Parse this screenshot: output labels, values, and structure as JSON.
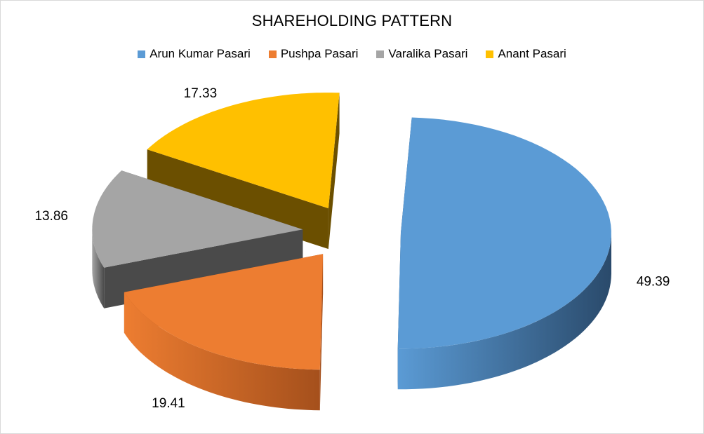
{
  "chart_data": {
    "type": "pie",
    "title": "SHAREHOLDING PATTERN",
    "legend_position": "top",
    "style": "3d-exploded",
    "slices": [
      {
        "name": "Arun Kumar Pasari",
        "value": 49.39,
        "label": "49.39",
        "color": "#5b9bd5",
        "side_color": "#2a4a6b"
      },
      {
        "name": "Pushpa Pasari",
        "value": 19.41,
        "label": "19.41",
        "color": "#ed7d31",
        "side_color": "#a5501c"
      },
      {
        "name": "Varalika Pasari",
        "value": 13.86,
        "label": "13.86",
        "color": "#a5a5a5",
        "side_color": "#4a4a4a"
      },
      {
        "name": "Anant Pasari",
        "value": 17.33,
        "label": "17.33",
        "color": "#ffc000",
        "side_color": "#6b4f00"
      }
    ]
  }
}
